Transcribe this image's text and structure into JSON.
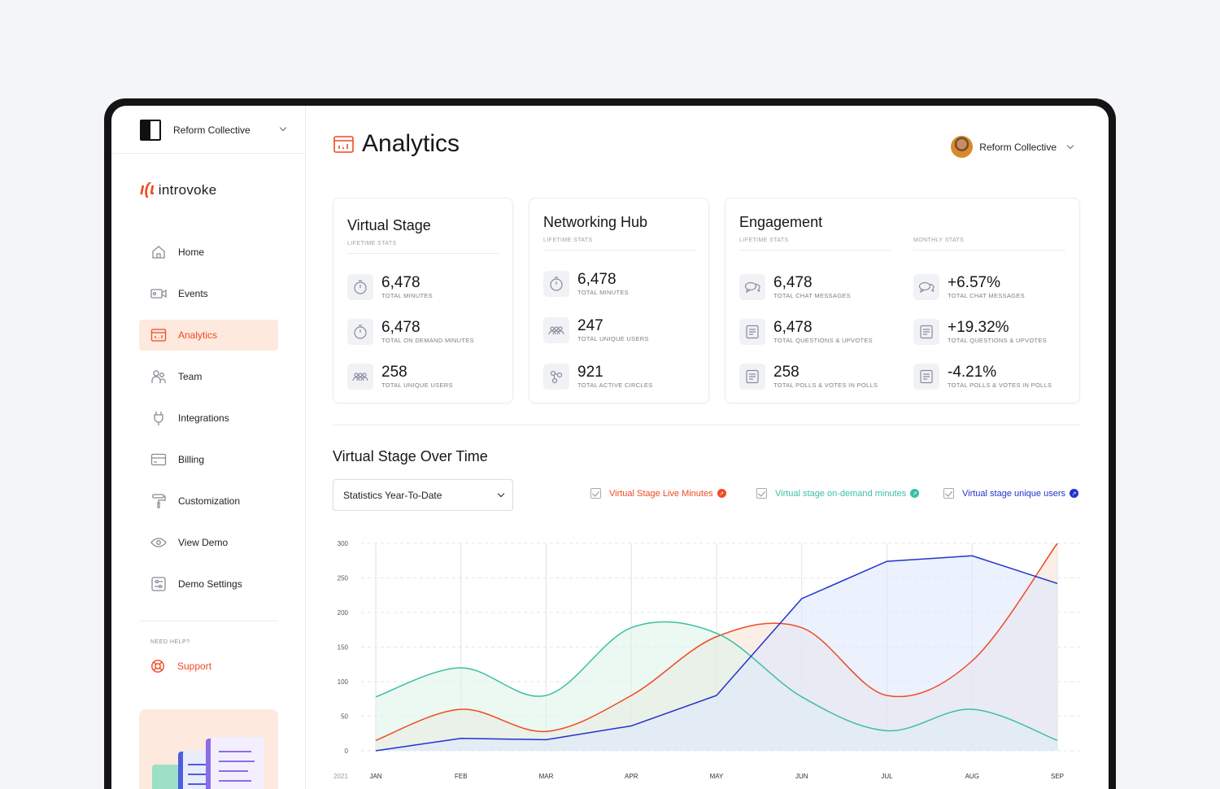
{
  "sidebar": {
    "org_name": "Reform Collective",
    "brand": {
      "mark": "ı(ɩ",
      "name": "introvoke"
    },
    "nav": [
      {
        "label": "Home",
        "icon": "home-icon"
      },
      {
        "label": "Events",
        "icon": "video-icon"
      },
      {
        "label": "Analytics",
        "icon": "analytics-icon",
        "active": true
      },
      {
        "label": "Team",
        "icon": "team-icon"
      },
      {
        "label": "Integrations",
        "icon": "plug-icon"
      },
      {
        "label": "Billing",
        "icon": "card-icon"
      },
      {
        "label": "Customization",
        "icon": "paint-roller-icon"
      },
      {
        "label": "View Demo",
        "icon": "eye-icon"
      },
      {
        "label": "Demo Settings",
        "icon": "sliders-icon"
      }
    ],
    "need_help": "NEED HELP?",
    "support_label": "Support"
  },
  "header": {
    "title": "Analytics",
    "user_name": "Reform Collective"
  },
  "cards": {
    "virtual_stage": {
      "title": "Virtual Stage",
      "section": "LIFETIME STATS",
      "stats": [
        {
          "value": "6,478",
          "label": "TOTAL MINUTES"
        },
        {
          "value": "6,478",
          "label": "TOTAL ON DEMAND MINUTES"
        },
        {
          "value": "258",
          "label": "TOTAL UNIQUE USERS"
        }
      ]
    },
    "networking_hub": {
      "title": "Networking Hub",
      "section": "LIFETIME STATS",
      "stats": [
        {
          "value": "6,478",
          "label": "TOTAL MINUTES"
        },
        {
          "value": "247",
          "label": "TOTAL UNIQUE USERS"
        },
        {
          "value": "921",
          "label": "TOTAL ACTIVE CIRCLES"
        }
      ]
    },
    "engagement": {
      "title": "Engagement",
      "section_lifetime": "LIFETIME STATS",
      "section_monthly": "MONTHLY STATS",
      "lifetime": [
        {
          "value": "6,478",
          "label": "TOTAL CHAT MESSAGES"
        },
        {
          "value": "6,478",
          "label": "TOTAL QUESTIONS & UPVOTES"
        },
        {
          "value": "258",
          "label": "TOTAL POLLS & VOTES IN POLLS"
        }
      ],
      "monthly": [
        {
          "value": "+6.57%",
          "label": "TOTAL CHAT MESSAGES"
        },
        {
          "value": "+19.32%",
          "label": "TOTAL QUESTIONS & UPVOTES"
        },
        {
          "value": "-4.21%",
          "label": "TOTAL POLLS & VOTES IN POLLS"
        }
      ]
    }
  },
  "chart_section": {
    "title": "Virtual Stage Over Time",
    "filter": "Statistics Year-To-Date"
  },
  "colors": {
    "accent": "#f04a23",
    "live": "#f04a23",
    "ondemand": "#3cbfa3",
    "users": "#2233cc"
  },
  "chart_data": {
    "type": "area",
    "title": "Virtual Stage Over Time",
    "year_label": "2021",
    "categories": [
      "JAN",
      "FEB",
      "MAR",
      "APR",
      "MAY",
      "JUN",
      "JUL",
      "AUG",
      "SEP"
    ],
    "ylim": [
      0,
      300
    ],
    "yticks": [
      0,
      50,
      100,
      150,
      200,
      250,
      300
    ],
    "grid": true,
    "series": [
      {
        "name": "Virtual Stage Live Minutes",
        "color": "#f04a23",
        "fill": "#f6e3d6",
        "values": [
          15,
          60,
          28,
          80,
          165,
          178,
          80,
          130,
          300
        ]
      },
      {
        "name": "Virtual stage on-demand minutes",
        "color": "#3cbfa3",
        "fill": "#dff3ea",
        "values": [
          78,
          120,
          80,
          178,
          170,
          78,
          29,
          60,
          15
        ]
      },
      {
        "name": "Virtual stage unique users",
        "color": "#2233cc",
        "fill": "#dde8fb",
        "values": [
          0,
          18,
          16,
          36,
          80,
          220,
          274,
          282,
          242
        ]
      }
    ]
  }
}
